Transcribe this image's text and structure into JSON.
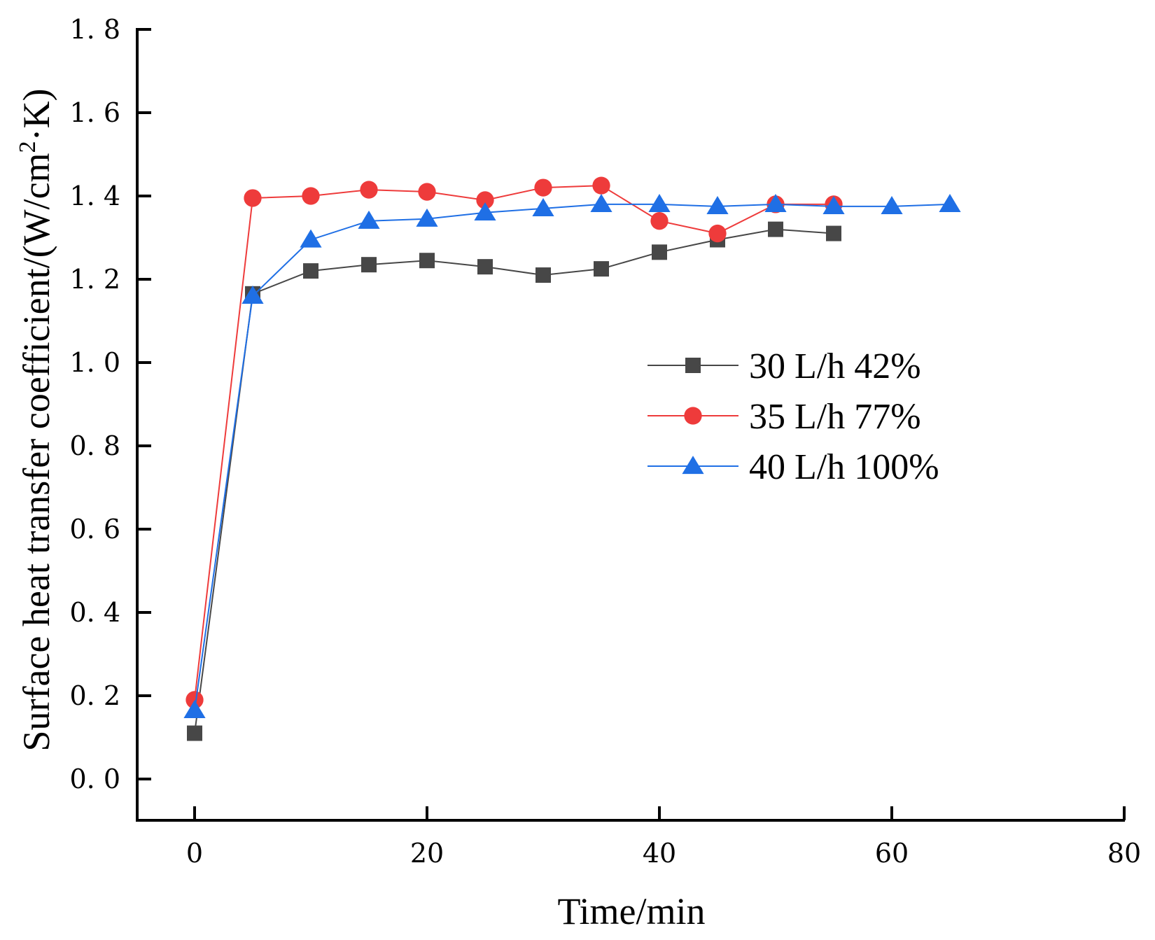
{
  "chart_data": {
    "type": "line",
    "title": "",
    "xlabel": "Time/min",
    "ylabel_main": "Surface heat transfer coefficient/(W/cm",
    "ylabel_sup": "2",
    "ylabel_end": "·K)",
    "xlim": [
      -5,
      80
    ],
    "ylim": [
      -0.1,
      1.8
    ],
    "xticks": [
      0,
      20,
      40,
      60,
      80
    ],
    "xtick_labels": [
      "0",
      "20",
      "40",
      "60",
      "80"
    ],
    "yticks": [
      0.0,
      0.2,
      0.4,
      0.6,
      0.8,
      1.0,
      1.2,
      1.4,
      1.6,
      1.8
    ],
    "ytick_labels": [
      "0. 0",
      "0. 2",
      "0. 4",
      "0. 6",
      "0. 8",
      "1. 0",
      "1. 2",
      "1. 4",
      "1. 6",
      "1. 8"
    ],
    "legend_position": "center-right",
    "series": [
      {
        "name": "30 L/h 42%",
        "color": "#474747",
        "marker": "square",
        "x": [
          0,
          5,
          10,
          15,
          20,
          25,
          30,
          35,
          40,
          45,
          50,
          55
        ],
        "values": [
          0.11,
          1.165,
          1.22,
          1.235,
          1.245,
          1.23,
          1.21,
          1.225,
          1.265,
          1.295,
          1.32,
          1.31
        ]
      },
      {
        "name": "35 L/h 77%",
        "color": "#ee3b3b",
        "marker": "circle",
        "x": [
          0,
          5,
          10,
          15,
          20,
          25,
          30,
          35,
          40,
          45,
          50,
          55
        ],
        "values": [
          0.19,
          1.395,
          1.4,
          1.415,
          1.41,
          1.39,
          1.42,
          1.425,
          1.34,
          1.31,
          1.38,
          1.38
        ]
      },
      {
        "name": "40 L/h 100%",
        "color": "#1f6fe5",
        "marker": "triangle",
        "x": [
          0,
          5,
          10,
          15,
          20,
          25,
          30,
          35,
          40,
          45,
          50,
          55,
          60,
          65
        ],
        "values": [
          0.165,
          1.16,
          1.295,
          1.34,
          1.345,
          1.36,
          1.37,
          1.38,
          1.38,
          1.375,
          1.38,
          1.375,
          1.375,
          1.38
        ]
      }
    ]
  }
}
